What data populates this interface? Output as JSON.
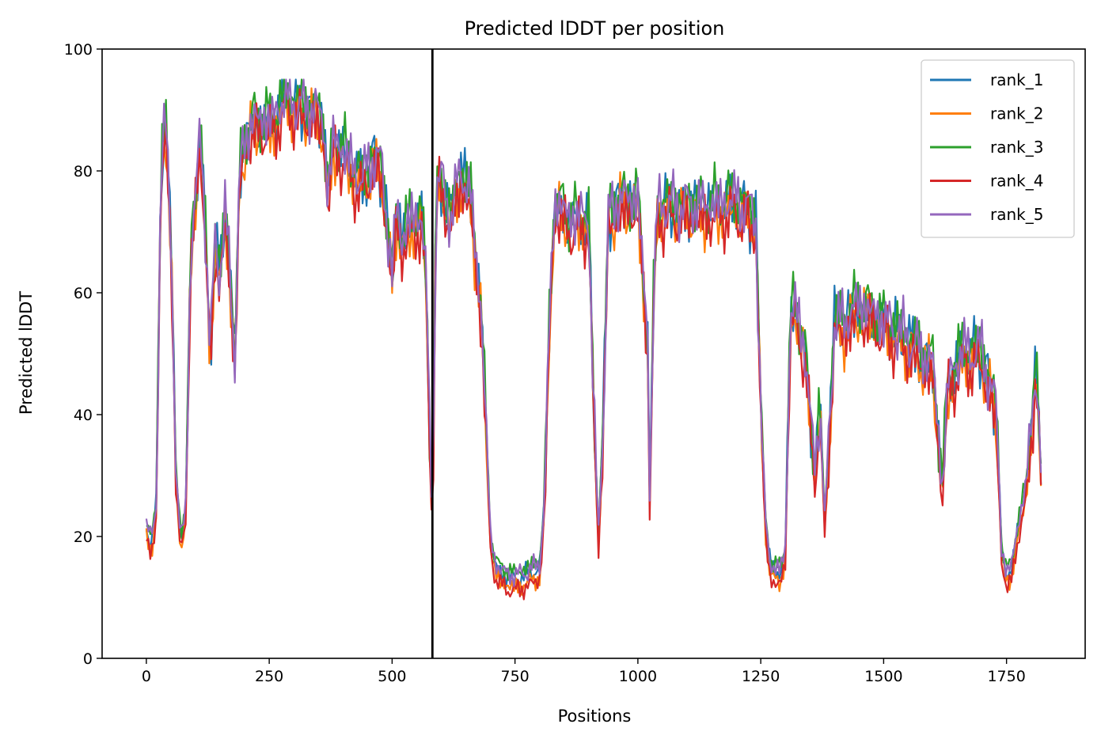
{
  "chart_data": {
    "type": "line",
    "title": "Predicted lDDT per position",
    "xlabel": "Positions",
    "ylabel": "Predicted lDDT",
    "xlim": [
      -90,
      1910
    ],
    "ylim": [
      0,
      100
    ],
    "x_ticks": [
      0,
      250,
      500,
      750,
      1000,
      1250,
      1500,
      1750
    ],
    "y_ticks": [
      0,
      20,
      40,
      60,
      80,
      100
    ],
    "grid": false,
    "legend_position": "top-right",
    "vline": {
      "x": 582,
      "color": "#000000"
    },
    "series_offsets": [
      0,
      -1.5,
      1,
      -2,
      0.5
    ],
    "series": [
      {
        "name": "rank_1",
        "color": "#1f77b4"
      },
      {
        "name": "rank_2",
        "color": "#ff7f0e"
      },
      {
        "name": "rank_3",
        "color": "#2ca02c"
      },
      {
        "name": "rank_4",
        "color": "#d62728"
      },
      {
        "name": "rank_5",
        "color": "#9467bd"
      }
    ],
    "profile_positions": [
      0,
      10,
      20,
      30,
      40,
      50,
      60,
      70,
      80,
      90,
      100,
      110,
      120,
      130,
      140,
      150,
      160,
      170,
      180,
      190,
      200,
      220,
      240,
      260,
      280,
      300,
      320,
      340,
      360,
      370,
      380,
      400,
      420,
      440,
      460,
      480,
      500,
      510,
      520,
      540,
      560,
      570,
      575,
      582,
      590,
      600,
      620,
      640,
      660,
      680,
      690,
      700,
      710,
      720,
      750,
      780,
      800,
      810,
      820,
      830,
      860,
      900,
      910,
      920,
      930,
      940,
      960,
      1000,
      1020,
      1025,
      1030,
      1040,
      1080,
      1120,
      1160,
      1200,
      1240,
      1250,
      1260,
      1270,
      1280,
      1290,
      1300,
      1310,
      1320,
      1340,
      1360,
      1370,
      1380,
      1390,
      1400,
      1420,
      1450,
      1500,
      1550,
      1600,
      1610,
      1620,
      1630,
      1660,
      1700,
      1730,
      1740,
      1750,
      1760,
      1770,
      1790,
      1800,
      1810,
      1820
    ],
    "profile_values": [
      21,
      19,
      25,
      80,
      88,
      70,
      30,
      19,
      25,
      65,
      75,
      88,
      70,
      48,
      70,
      62,
      72,
      65,
      48,
      80,
      85,
      88,
      88,
      88,
      92,
      91,
      90,
      90,
      88,
      75,
      85,
      83,
      80,
      78,
      82,
      80,
      62,
      75,
      68,
      72,
      72,
      62,
      40,
      22,
      78,
      78,
      72,
      80,
      75,
      58,
      40,
      20,
      15,
      14,
      13,
      14,
      15,
      25,
      55,
      75,
      72,
      72,
      40,
      20,
      40,
      72,
      75,
      75,
      52,
      20,
      55,
      74,
      74,
      74,
      74,
      75,
      72,
      40,
      22,
      15,
      14,
      14,
      18,
      55,
      58,
      50,
      30,
      42,
      22,
      38,
      55,
      55,
      58,
      55,
      52,
      48,
      38,
      28,
      45,
      50,
      50,
      40,
      18,
      13,
      15,
      20,
      28,
      38,
      48,
      30
    ]
  }
}
